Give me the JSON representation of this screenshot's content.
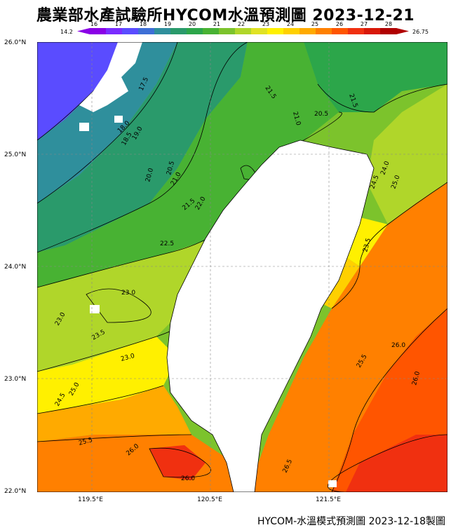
{
  "title": "農業部水產試驗所HYCOM水溫預測圖 2023-12-21",
  "colorbar": {
    "min_label": "14.2",
    "max_label": "26.75",
    "ticks": [
      "16",
      "17",
      "18",
      "19",
      "20",
      "21",
      "22",
      "23",
      "24",
      "25",
      "26",
      "27",
      "28"
    ],
    "colors": [
      "#8a00e6",
      "#7a2cff",
      "#5a4cff",
      "#3d6fd6",
      "#2f8f9c",
      "#2a9a6b",
      "#2ca64a",
      "#48b233",
      "#7cc32c",
      "#b0d62a",
      "#e0e224",
      "#fff000",
      "#ffd000",
      "#ffaa00",
      "#ff8000",
      "#ff5500",
      "#f03010",
      "#d81808",
      "#b00000"
    ]
  },
  "axes": {
    "y_labels": [
      "26.0°N",
      "25.0°N",
      "24.0°N",
      "23.0°N",
      "22.0°N"
    ],
    "x_labels": [
      "119.5°E",
      "120.5°E",
      "121.5°E"
    ]
  },
  "contour_labels": [
    {
      "text": "17.5"
    },
    {
      "text": "18.0"
    },
    {
      "text": "18.5"
    },
    {
      "text": "19.0"
    },
    {
      "text": "20.0"
    },
    {
      "text": "20.5"
    },
    {
      "text": "21.0"
    },
    {
      "text": "21.5"
    },
    {
      "text": "22.0"
    },
    {
      "text": "21.5"
    },
    {
      "text": "21.0"
    },
    {
      "text": "20.5"
    },
    {
      "text": "21.5"
    },
    {
      "text": "23.0"
    },
    {
      "text": "22.5"
    },
    {
      "text": "23.0"
    },
    {
      "text": "23.5"
    },
    {
      "text": "23.0"
    },
    {
      "text": "24.0"
    },
    {
      "text": "24.5"
    },
    {
      "text": "25.0"
    },
    {
      "text": "23.5"
    },
    {
      "text": "26.0"
    },
    {
      "text": "25.5"
    },
    {
      "text": "26.0"
    },
    {
      "text": "24.5"
    },
    {
      "text": "25.0"
    },
    {
      "text": "25.5"
    },
    {
      "text": "26.0"
    },
    {
      "text": "26.0"
    },
    {
      "text": "26.5"
    }
  ],
  "footer": "HYCOM-水溫模式預測圖 2023-12-18製圖"
}
